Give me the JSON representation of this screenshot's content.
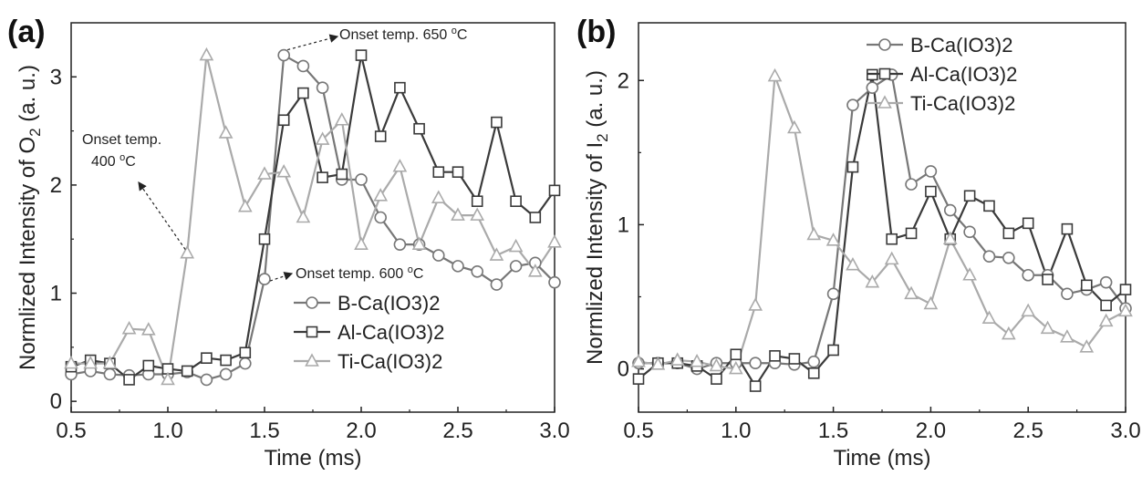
{
  "colors": {
    "B": "#777777",
    "Al": "#3a3a3a",
    "Ti": "#aaaaaa"
  },
  "chart_data": [
    {
      "panel_label": "(a)",
      "type": "line",
      "xlabel": "Time (ms)",
      "ylabel_prefix": "Normlized Intensity of O",
      "ylabel_sub": "2",
      "ylabel_suffix": " (a. u.)",
      "xlim": [
        0.5,
        3.0
      ],
      "ylim": [
        -0.1,
        3.5
      ],
      "xticks": [
        "0.5",
        "1.0",
        "1.5",
        "2.0",
        "2.5",
        "3.0"
      ],
      "yticks": [
        "0",
        "1",
        "2",
        "3"
      ],
      "legend_position": "lower-right",
      "x": [
        0.5,
        0.6,
        0.7,
        0.8,
        0.9,
        1.0,
        1.1,
        1.2,
        1.3,
        1.4,
        1.5,
        1.6,
        1.7,
        1.8,
        1.9,
        2.0,
        2.1,
        2.2,
        2.3,
        2.4,
        2.5,
        2.6,
        2.7,
        2.8,
        2.9,
        3.0
      ],
      "series": [
        {
          "name": "B-Ca(IO3)2",
          "marker": "circle",
          "values": [
            0.25,
            0.28,
            0.25,
            0.24,
            0.25,
            0.25,
            0.27,
            0.2,
            0.25,
            0.35,
            1.13,
            3.2,
            3.1,
            2.9,
            2.05,
            2.05,
            1.7,
            1.45,
            1.45,
            1.35,
            1.25,
            1.2,
            1.08,
            1.25,
            1.28,
            1.1
          ]
        },
        {
          "name": "Al-Ca(IO3)2",
          "marker": "square",
          "values": [
            0.32,
            0.38,
            0.35,
            0.2,
            0.33,
            0.3,
            0.28,
            0.4,
            0.38,
            0.45,
            1.5,
            2.6,
            2.85,
            2.07,
            2.1,
            3.2,
            2.45,
            2.9,
            2.52,
            2.12,
            2.12,
            1.85,
            2.58,
            1.85,
            1.7,
            1.95
          ]
        },
        {
          "name": "Ti-Ca(IO3)2",
          "marker": "triangle",
          "values": [
            0.35,
            0.35,
            0.35,
            0.67,
            0.66,
            0.2,
            1.37,
            3.2,
            2.48,
            1.8,
            2.1,
            2.12,
            1.7,
            2.42,
            2.6,
            1.45,
            1.9,
            2.17,
            1.45,
            1.88,
            1.72,
            1.72,
            1.35,
            1.43,
            1.2,
            1.47
          ]
        }
      ],
      "annotations": [
        {
          "line1": "Onset temp.",
          "line2_num": "400 ",
          "line2_sup": "o",
          "line2_end": "C",
          "point": [
            1.1,
            1.37
          ]
        },
        {
          "line1": "Onset temp. 650 ",
          "sup": "o",
          "end": "C",
          "point": [
            1.6,
            3.2
          ]
        },
        {
          "line1": "Onset temp. 600 ",
          "sup": "o",
          "end": "C",
          "point": [
            1.5,
            1.13
          ]
        }
      ]
    },
    {
      "panel_label": "(b)",
      "type": "line",
      "xlabel": "Time (ms)",
      "ylabel_prefix": "Normlized Intensity of I",
      "ylabel_sub": "2",
      "ylabel_suffix": " (a. u.)",
      "xlim": [
        0.5,
        3.0
      ],
      "ylim": [
        -0.3,
        2.4
      ],
      "xticks": [
        "0.5",
        "1.0",
        "1.5",
        "2.0",
        "2.5",
        "3.0"
      ],
      "yticks": [
        "0",
        "1",
        "2"
      ],
      "legend_position": "top-right",
      "x": [
        0.5,
        0.6,
        0.7,
        0.8,
        0.9,
        1.0,
        1.1,
        1.2,
        1.3,
        1.4,
        1.5,
        1.6,
        1.7,
        1.8,
        1.9,
        2.0,
        2.1,
        2.2,
        2.3,
        2.4,
        2.5,
        2.6,
        2.7,
        2.8,
        2.9,
        3.0
      ],
      "series": [
        {
          "name": "B-Ca(IO3)2",
          "marker": "circle",
          "values": [
            0.04,
            0.04,
            0.04,
            0.0,
            0.04,
            0.04,
            0.04,
            0.04,
            0.03,
            0.05,
            0.52,
            1.83,
            1.95,
            2.04,
            1.28,
            1.37,
            1.1,
            0.95,
            0.78,
            0.77,
            0.65,
            0.65,
            0.52,
            0.55,
            0.6,
            0.42
          ]
        },
        {
          "name": "Al-Ca(IO3)2",
          "marker": "square",
          "values": [
            -0.07,
            0.04,
            0.04,
            0.02,
            -0.07,
            0.1,
            -0.12,
            0.09,
            0.07,
            -0.03,
            0.13,
            1.4,
            2.04,
            0.9,
            0.94,
            1.23,
            0.9,
            1.2,
            1.13,
            0.94,
            1.01,
            0.62,
            0.97,
            0.58,
            0.44,
            0.55
          ]
        },
        {
          "name": "Ti-Ca(IO3)2",
          "marker": "triangle",
          "values": [
            0.05,
            0.03,
            0.06,
            0.05,
            0.02,
            0.0,
            0.44,
            2.03,
            1.67,
            0.93,
            0.89,
            0.72,
            0.6,
            0.76,
            0.52,
            0.45,
            0.9,
            0.65,
            0.35,
            0.24,
            0.4,
            0.28,
            0.22,
            0.15,
            0.33,
            0.4
          ]
        }
      ]
    }
  ]
}
